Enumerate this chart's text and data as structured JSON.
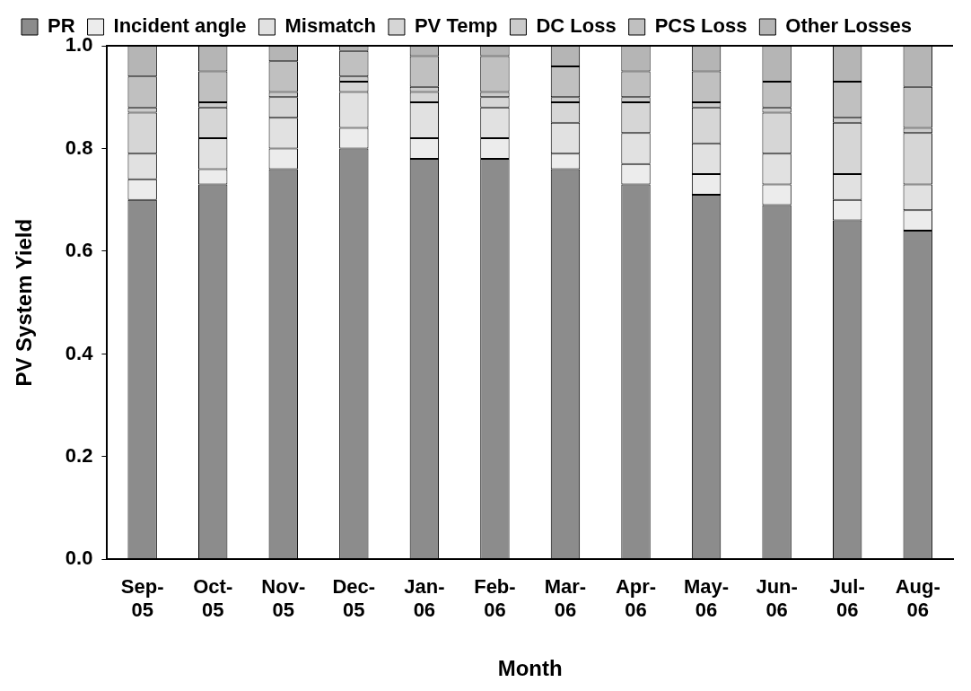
{
  "chart_data": {
    "type": "bar",
    "stacked": true,
    "xlabel": "Month",
    "ylabel": "PV System Yield",
    "categories": [
      "Sep-05",
      "Oct-05",
      "Nov-05",
      "Dec-05",
      "Jan-06",
      "Feb-06",
      "Mar-06",
      "Apr-06",
      "May-06",
      "Jun-06",
      "Jul-06",
      "Aug-06"
    ],
    "series": [
      {
        "name": "PR",
        "color": "#8c8c8c",
        "values": [
          0.7,
          0.73,
          0.76,
          0.8,
          0.78,
          0.78,
          0.76,
          0.73,
          0.71,
          0.69,
          0.66,
          0.64
        ]
      },
      {
        "name": "Incident angle",
        "color": "#ececec",
        "values": [
          0.04,
          0.03,
          0.04,
          0.04,
          0.04,
          0.04,
          0.03,
          0.04,
          0.04,
          0.04,
          0.04,
          0.04
        ]
      },
      {
        "name": "Mismatch",
        "color": "#e1e1e1",
        "values": [
          0.05,
          0.06,
          0.06,
          0.07,
          0.07,
          0.06,
          0.06,
          0.06,
          0.06,
          0.06,
          0.05,
          0.05
        ]
      },
      {
        "name": "PV Temp",
        "color": "#d6d6d6",
        "values": [
          0.08,
          0.06,
          0.04,
          0.02,
          0.02,
          0.02,
          0.04,
          0.06,
          0.07,
          0.08,
          0.1,
          0.1
        ]
      },
      {
        "name": "DC Loss",
        "color": "#cbcbcb",
        "values": [
          0.01,
          0.01,
          0.01,
          0.01,
          0.01,
          0.01,
          0.01,
          0.01,
          0.01,
          0.01,
          0.01,
          0.01
        ]
      },
      {
        "name": "PCS Loss",
        "color": "#c0c0c0",
        "values": [
          0.06,
          0.06,
          0.06,
          0.05,
          0.06,
          0.07,
          0.06,
          0.05,
          0.06,
          0.05,
          0.07,
          0.08
        ]
      },
      {
        "name": "Other Losses",
        "color": "#b5b5b5",
        "values": [
          0.06,
          0.05,
          0.03,
          0.01,
          0.02,
          0.02,
          0.04,
          0.05,
          0.05,
          0.07,
          0.07,
          0.08
        ]
      }
    ],
    "ylim": [
      0,
      1
    ],
    "yticks": [
      {
        "value": 0,
        "label": "0.0"
      },
      {
        "value": 0.2,
        "label": "0.2"
      },
      {
        "value": 0.4,
        "label": "0.4"
      },
      {
        "value": 0.6,
        "label": "0.6"
      },
      {
        "value": 0.8,
        "label": "0.8"
      },
      {
        "value": 1,
        "label": "1.0"
      }
    ],
    "grid": false,
    "legend": "top"
  }
}
